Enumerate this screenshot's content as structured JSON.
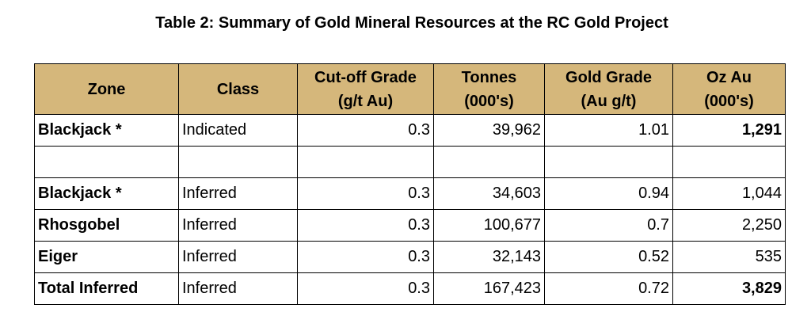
{
  "title": "Table 2: Summary of Gold Mineral Resources at the RC Gold Project",
  "headers": [
    {
      "line1": "Zone",
      "line2": ""
    },
    {
      "line1": "Class",
      "line2": ""
    },
    {
      "line1": "Cut-off Grade",
      "line2": "(g/t Au)"
    },
    {
      "line1": "Tonnes",
      "line2": "(000's)"
    },
    {
      "line1": "Gold Grade",
      "line2": "(Au g/t)"
    },
    {
      "line1": "Oz Au",
      "line2": "(000's)"
    }
  ],
  "rows": [
    {
      "zone": "Blackjack *",
      "class": "Indicated",
      "cutoff": "0.3",
      "tonnes": "39,962",
      "grade": "1.01",
      "oz": "1,291",
      "oz_bold": true
    },
    {
      "zone": "",
      "class": "",
      "cutoff": "",
      "tonnes": "",
      "grade": "",
      "oz": "",
      "oz_bold": false
    },
    {
      "zone": "Blackjack *",
      "class": "Inferred",
      "cutoff": "0.3",
      "tonnes": "34,603",
      "grade": "0.94",
      "oz": "1,044",
      "oz_bold": false
    },
    {
      "zone": "Rhosgobel",
      "class": "Inferred",
      "cutoff": "0.3",
      "tonnes": "100,677",
      "grade": "0.7",
      "oz": "2,250",
      "oz_bold": false
    },
    {
      "zone": "Eiger",
      "class": "Inferred",
      "cutoff": "0.3",
      "tonnes": "32,143",
      "grade": "0.52",
      "oz": "535",
      "oz_bold": false
    },
    {
      "zone": "Total Inferred",
      "class": "Inferred",
      "cutoff": "0.3",
      "tonnes": "167,423",
      "grade": "0.72",
      "oz": "3,829",
      "oz_bold": true
    }
  ],
  "colors": {
    "header_bg": "#d5b77b",
    "border": "#000000"
  }
}
